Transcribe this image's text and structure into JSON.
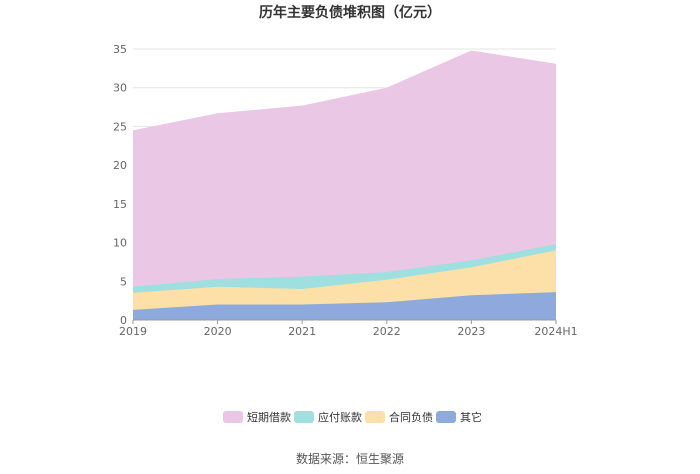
{
  "chart_data": {
    "type": "area",
    "stacked": true,
    "title": "历年主要负债堆积图（亿元）",
    "x": [
      "2019",
      "2020",
      "2021",
      "2022",
      "2023",
      "2024H1"
    ],
    "ylim": [
      0,
      35
    ],
    "yticks": [
      "0",
      "5",
      "10",
      "15",
      "20",
      "25",
      "30",
      "35"
    ],
    "grid": true,
    "legend_position": "bottom",
    "series": [
      {
        "name": "其它",
        "color": "#8eaadc",
        "values": [
          1.3,
          2.0,
          2.0,
          2.3,
          3.2,
          3.6
        ]
      },
      {
        "name": "合同负债",
        "color": "#fde0a8",
        "values": [
          2.2,
          2.3,
          2.0,
          2.9,
          3.6,
          5.4
        ]
      },
      {
        "name": "应付账款",
        "color": "#9fdfe0",
        "values": [
          0.8,
          1.0,
          1.6,
          1.0,
          0.9,
          0.8
        ]
      },
      {
        "name": "短期借款",
        "color": "#eac7e4",
        "values": [
          20.1,
          21.3,
          22.0,
          23.7,
          27.0,
          23.2
        ]
      }
    ],
    "legend_order": [
      3,
      2,
      1,
      0
    ]
  },
  "source_label": "数据来源：恒生聚源"
}
